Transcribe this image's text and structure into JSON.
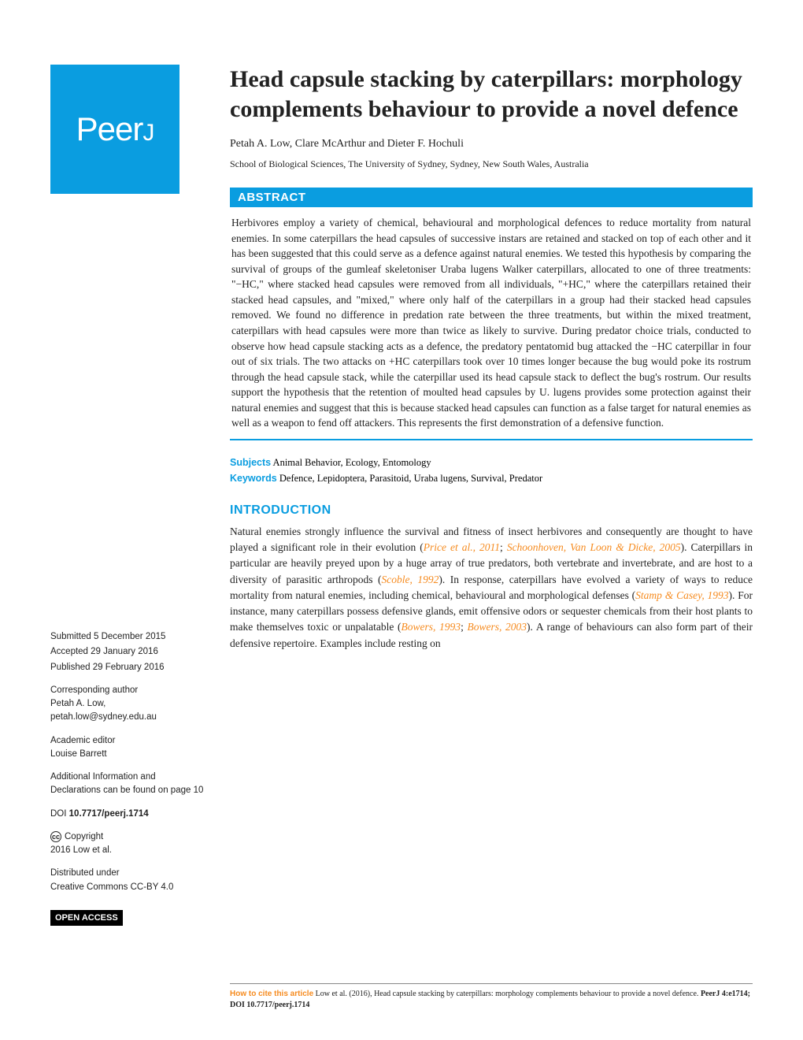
{
  "logo": {
    "brand": "Peer",
    "suffix": "J"
  },
  "title": "Head capsule stacking by caterpillars: morphology complements behaviour to provide a novel defence",
  "authors": "Petah A. Low, Clare McArthur and Dieter F. Hochuli",
  "affiliation": "School of Biological Sciences, The University of Sydney, Sydney, New South Wales, Australia",
  "abstract_label": "ABSTRACT",
  "abstract": "Herbivores employ a variety of chemical, behavioural and morphological defences to reduce mortality from natural enemies. In some caterpillars the head capsules of successive instars are retained and stacked on top of each other and it has been suggested that this could serve as a defence against natural enemies. We tested this hypothesis by comparing the survival of groups of the gumleaf skeletoniser Uraba lugens Walker caterpillars, allocated to one of three treatments: \"−HC,\" where stacked head capsules were removed from all individuals, \"+HC,\" where the caterpillars retained their stacked head capsules, and \"mixed,\" where only half of the caterpillars in a group had their stacked head capsules removed. We found no difference in predation rate between the three treatments, but within the mixed treatment, caterpillars with head capsules were more than twice as likely to survive. During predator choice trials, conducted to observe how head capsule stacking acts as a defence, the predatory pentatomid bug attacked the −HC caterpillar in four out of six trials. The two attacks on +HC caterpillars took over 10 times longer because the bug would poke its rostrum through the head capsule stack, while the caterpillar used its head capsule stack to deflect the bug's rostrum. Our results support the hypothesis that the retention of moulted head capsules by U. lugens provides some protection against their natural enemies and suggest that this is because stacked head capsules can function as a false target for natural enemies as well as a weapon to fend off attackers. This represents the first demonstration of a defensive function.",
  "subjects_label": "Subjects",
  "subjects": "Animal Behavior, Ecology, Entomology",
  "keywords_label": "Keywords",
  "keywords": "Defence, Lepidoptera, Parasitoid, Uraba lugens, Survival, Predator",
  "introduction_label": "INTRODUCTION",
  "intro_parts": {
    "t1": "Natural enemies strongly influence the survival and fitness of insect herbivores and consequently are thought to have played a significant role in their evolution (",
    "r1": "Price et al., 2011",
    "t2": "; ",
    "r2": "Schoonhoven, Van Loon & Dicke, 2005",
    "t3": "). Caterpillars in particular are heavily preyed upon by a huge array of true predators, both vertebrate and invertebrate, and are host to a diversity of parasitic arthropods (",
    "r3": "Scoble, 1992",
    "t4": "). In response, caterpillars have evolved a variety of ways to reduce mortality from natural enemies, including chemical, behavioural and morphological defenses (",
    "r4": "Stamp & Casey, 1993",
    "t5": "). For instance, many caterpillars possess defensive glands, emit offensive odors or sequester chemicals from their host plants to make themselves toxic or unpalatable (",
    "r5": "Bowers, 1993",
    "t6": "; ",
    "r6": "Bowers, 2003",
    "t7": "). A range of behaviours can also form part of their defensive repertoire. Examples include resting on"
  },
  "sidebar": {
    "submitted_label": "Submitted",
    "submitted": "5 December 2015",
    "accepted_label": "Accepted",
    "accepted": "29 January 2016",
    "published_label": "Published",
    "published": "29 February 2016",
    "corr_label": "Corresponding author",
    "corr_name": "Petah A. Low,",
    "corr_email": "petah.low@sydney.edu.au",
    "editor_label": "Academic editor",
    "editor": "Louise Barrett",
    "addl_info": "Additional Information and Declarations can be found on page 10",
    "doi_label": "DOI",
    "doi": "10.7717/peerj.1714",
    "copyright_label": "Copyright",
    "copyright": "2016 Low et al.",
    "dist_label": "Distributed under",
    "dist": "Creative Commons CC-BY 4.0",
    "open_access": "OPEN ACCESS"
  },
  "citation": {
    "label": "How to cite this article",
    "text": "Low et al. (2016), Head capsule stacking by caterpillars: morphology complements behaviour to provide a novel defence. ",
    "journal": "PeerJ",
    "vol": "4:e1714; DOI 10.7717/peerj.1714"
  }
}
